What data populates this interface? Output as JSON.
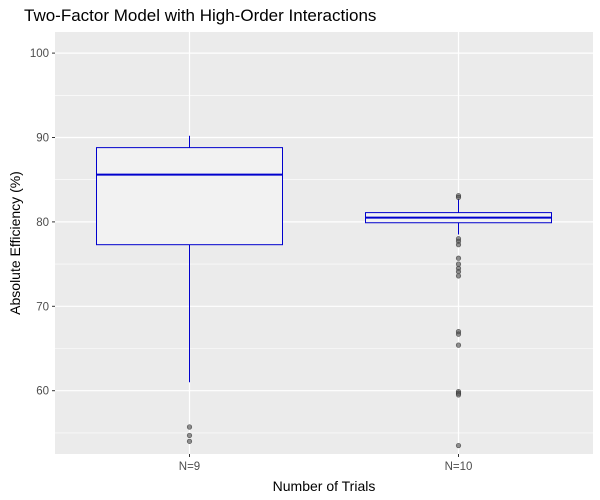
{
  "chart_data": {
    "type": "box",
    "title": "Two-Factor Model with High-Order Interactions",
    "xlabel": "Number of Trials",
    "ylabel": "Absolute Efficiency (%)",
    "categories": [
      "N=9",
      "N=10"
    ],
    "ylim": [
      52.5,
      102.5
    ],
    "yticks": [
      60,
      70,
      80,
      90,
      100
    ],
    "grid": true,
    "boxes": [
      {
        "category": "N=9",
        "whisker_low": 61.0,
        "q1": 77.3,
        "median": 85.6,
        "q3": 88.8,
        "whisker_high": 90.2,
        "outliers": [
          55.7,
          54.7,
          54.0
        ]
      },
      {
        "category": "N=10",
        "whisker_low": 78.5,
        "q1": 79.9,
        "median": 80.5,
        "q3": 81.1,
        "whisker_high": 82.7,
        "outliers": [
          83.1,
          82.9,
          78.0,
          77.7,
          77.3,
          75.7,
          75.0,
          74.5,
          74.1,
          73.6,
          67.0,
          66.7,
          65.4,
          59.9,
          59.7,
          59.5,
          53.5
        ]
      }
    ],
    "colors": {
      "panel_bg": "#ebebeb",
      "grid": "#ffffff",
      "box_stroke": "#0000cd",
      "box_fill": "#f2f2f2",
      "outlier": "#555555"
    }
  }
}
